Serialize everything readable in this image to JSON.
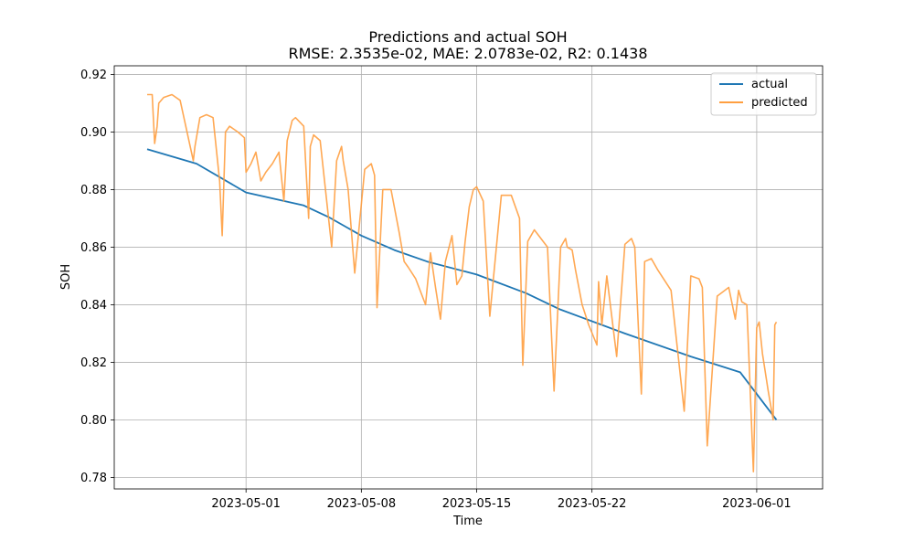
{
  "chart_data": {
    "type": "line",
    "title": "Predictions and actual SOH",
    "subtitle": "RMSE: 2.3535e-02, MAE: 2.0783e-02, R2: 0.1438",
    "xlabel": "Time",
    "ylabel": "SOH",
    "x_range": [
      "2023-04-23",
      "2023-06-05"
    ],
    "ylim": [
      0.776,
      0.923
    ],
    "x_ticks": [
      "2023-05-01",
      "2023-05-08",
      "2023-05-15",
      "2023-05-22",
      "2023-06-01"
    ],
    "y_ticks": [
      0.78,
      0.8,
      0.82,
      0.84,
      0.86,
      0.88,
      0.9,
      0.92
    ],
    "y_tick_labels": [
      "0.78",
      "0.80",
      "0.82",
      "0.84",
      "0.86",
      "0.88",
      "0.90",
      "0.92"
    ],
    "grid": true,
    "legend_position": "top-right",
    "series": [
      {
        "name": "actual",
        "color": "#1f77b4",
        "x": [
          "2023-04-25",
          "2023-04-28",
          "2023-05-01",
          "2023-05-04.5",
          "2023-05-06",
          "2023-05-08",
          "2023-05-10",
          "2023-05-12",
          "2023-05-15",
          "2023-05-18",
          "2023-05-20",
          "2023-05-24",
          "2023-05-28",
          "2023-05-31",
          "2023-06-02.2"
        ],
        "values": [
          0.894,
          0.889,
          0.879,
          0.8745,
          0.8705,
          0.864,
          0.859,
          0.855,
          0.8505,
          0.844,
          0.8385,
          0.83,
          0.822,
          0.8165,
          0.8
        ]
      },
      {
        "name": "predicted",
        "color": "#ff9f40",
        "x": [
          "2023-04-25",
          "2023-04-25.3",
          "2023-04-25.45",
          "2023-04-25.6",
          "2023-04-25.7",
          "2023-04-26",
          "2023-04-26.5",
          "2023-04-27",
          "2023-04-27.8",
          "2023-04-27.9",
          "2023-04-28.2",
          "2023-04-28.6",
          "2023-04-29",
          "2023-04-29.4",
          "2023-04-29.55",
          "2023-04-29.75",
          "2023-04-30",
          "2023-04-30.5",
          "2023-04-30.9",
          "2023-05-01",
          "2023-05-01.3",
          "2023-05-01.6",
          "2023-05-01.9",
          "2023-05-02.2",
          "2023-05-02.6",
          "2023-05-03",
          "2023-05-03.3",
          "2023-05-03.5",
          "2023-05-03.8",
          "2023-05-04",
          "2023-05-04.5",
          "2023-05-04.8",
          "2023-05-04.9",
          "2023-05-05.1",
          "2023-05-05.5",
          "2023-05-06.2",
          "2023-05-06.5",
          "2023-05-06.8",
          "2023-05-06.9",
          "2023-05-07.2",
          "2023-05-07.6",
          "2023-05-08.2",
          "2023-05-08.6",
          "2023-05-08.8",
          "2023-05-08.95",
          "2023-05-09.3",
          "2023-05-09.8",
          "2023-05-10.3",
          "2023-05-10.6",
          "2023-05-10.85",
          "2023-05-11.3",
          "2023-05-11.9",
          "2023-05-12.2",
          "2023-05-12.5",
          "2023-05-12.8",
          "2023-05-13.1",
          "2023-05-13.5",
          "2023-05-13.8",
          "2023-05-14.1",
          "2023-05-14.3",
          "2023-05-14.55",
          "2023-05-14.8",
          "2023-05-15",
          "2023-05-15.4",
          "2023-05-15.8",
          "2023-05-16.5",
          "2023-05-17.1",
          "2023-05-17.6",
          "2023-05-17.8",
          "2023-05-18.1",
          "2023-05-18.5",
          "2023-05-19.3",
          "2023-05-19.7",
          "2023-05-20.1",
          "2023-05-20.4",
          "2023-05-20.5",
          "2023-05-20.8",
          "2023-05-21",
          "2023-05-21.4",
          "2023-05-21.8",
          "2023-05-22.3",
          "2023-05-22.4",
          "2023-05-22.6",
          "2023-05-22.9",
          "2023-05-23.5",
          "2023-05-24",
          "2023-05-24.4",
          "2023-05-24.6",
          "2023-05-25",
          "2023-05-25.2",
          "2023-05-25.6",
          "2023-05-26",
          "2023-05-26.8",
          "2023-05-27.6",
          "2023-05-28",
          "2023-05-28.5",
          "2023-05-28.7",
          "2023-05-29",
          "2023-05-29.6",
          "2023-05-30.3",
          "2023-05-30.7",
          "2023-05-30.9",
          "2023-05-31.1",
          "2023-05-31.4",
          "2023-05-31.8",
          "2023-06-01",
          "2023-06-01.15",
          "2023-06-01.35",
          "2023-06-01.7",
          "2023-06-02",
          "2023-06-02.1",
          "2023-06-02.2"
        ],
        "values": [
          0.913,
          0.913,
          0.896,
          0.902,
          0.91,
          0.912,
          0.913,
          0.911,
          0.89,
          0.895,
          0.905,
          0.906,
          0.905,
          0.883,
          0.864,
          0.9,
          0.902,
          0.9,
          0.898,
          0.886,
          0.889,
          0.893,
          0.883,
          0.886,
          0.889,
          0.893,
          0.876,
          0.897,
          0.904,
          0.905,
          0.902,
          0.87,
          0.895,
          0.899,
          0.897,
          0.86,
          0.89,
          0.895,
          0.89,
          0.88,
          0.851,
          0.887,
          0.889,
          0.885,
          0.839,
          0.88,
          0.88,
          0.865,
          0.855,
          0.853,
          0.849,
          0.84,
          0.858,
          0.846,
          0.835,
          0.855,
          0.864,
          0.847,
          0.85,
          0.862,
          0.874,
          0.88,
          0.881,
          0.876,
          0.836,
          0.878,
          0.878,
          0.87,
          0.819,
          0.862,
          0.866,
          0.86,
          0.81,
          0.86,
          0.863,
          0.86,
          0.859,
          0.852,
          0.84,
          0.833,
          0.826,
          0.848,
          0.833,
          0.85,
          0.822,
          0.861,
          0.863,
          0.86,
          0.809,
          0.855,
          0.856,
          0.852,
          0.845,
          0.803,
          0.85,
          0.849,
          0.846,
          0.791,
          0.843,
          0.846,
          0.835,
          0.845,
          0.841,
          0.84,
          0.782,
          0.832,
          0.834,
          0.823,
          0.81,
          0.8,
          0.833,
          0.834
        ]
      }
    ]
  }
}
